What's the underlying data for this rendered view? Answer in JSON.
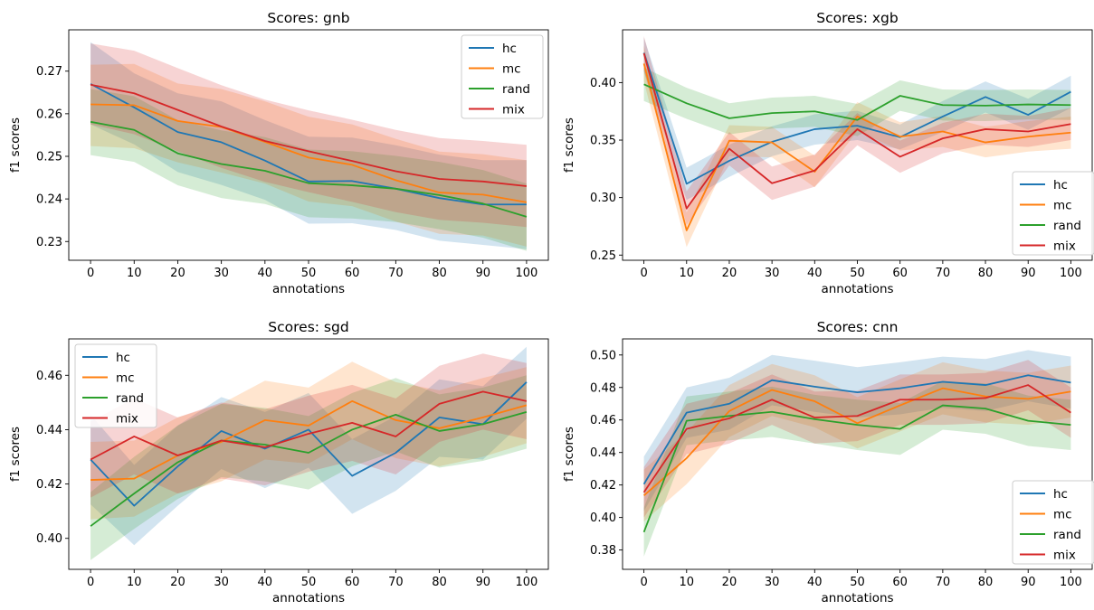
{
  "figure": {
    "colors": {
      "hc": "#1f77b4",
      "mc": "#ff7f0e",
      "rand": "#2ca02c",
      "mix": "#d62728"
    }
  },
  "chart_data": [
    {
      "type": "line",
      "title": "Scores: gnb",
      "xlabel": "annotations",
      "ylabel": "f1 scores",
      "x": [
        0,
        10,
        20,
        30,
        40,
        50,
        60,
        70,
        80,
        90,
        100
      ],
      "xlim": [
        -5,
        105
      ],
      "ylim": [
        0.2256,
        0.2797
      ],
      "xticks": [
        0,
        10,
        20,
        30,
        40,
        50,
        60,
        70,
        80,
        90,
        100
      ],
      "yticks": [
        0.23,
        0.24,
        0.25,
        0.26,
        0.27
      ],
      "legend": "top-right",
      "grid": false,
      "series": [
        {
          "name": "hc",
          "values": [
            0.267,
            0.2615,
            0.2557,
            0.2533,
            0.249,
            0.2441,
            0.2442,
            0.2424,
            0.2402,
            0.2387,
            0.2387
          ],
          "lower": [
            0.2575,
            0.2528,
            0.2463,
            0.2433,
            0.2398,
            0.2342,
            0.2343,
            0.2327,
            0.2302,
            0.2292,
            0.2282
          ],
          "upper": [
            0.2768,
            0.2695,
            0.2648,
            0.2629,
            0.2585,
            0.2546,
            0.2544,
            0.2526,
            0.2504,
            0.2491,
            0.2491
          ]
        },
        {
          "name": "mc",
          "values": [
            0.2622,
            0.262,
            0.2583,
            0.2569,
            0.2534,
            0.2497,
            0.248,
            0.2444,
            0.2415,
            0.241,
            0.2392
          ],
          "lower": [
            0.2524,
            0.2519,
            0.2486,
            0.2462,
            0.2436,
            0.2394,
            0.2383,
            0.2347,
            0.2318,
            0.2314,
            0.2288
          ],
          "upper": [
            0.2715,
            0.2717,
            0.2671,
            0.2658,
            0.2629,
            0.2593,
            0.2575,
            0.2541,
            0.2511,
            0.2505,
            0.2491
          ]
        },
        {
          "name": "rand",
          "values": [
            0.2581,
            0.2562,
            0.2507,
            0.2482,
            0.2466,
            0.2437,
            0.2432,
            0.2424,
            0.2409,
            0.2389,
            0.2358
          ],
          "lower": [
            0.2503,
            0.2487,
            0.2432,
            0.2402,
            0.2388,
            0.2357,
            0.2354,
            0.2346,
            0.2329,
            0.2309,
            0.2278
          ],
          "upper": [
            0.2658,
            0.2641,
            0.2585,
            0.2561,
            0.2545,
            0.2516,
            0.2512,
            0.2501,
            0.2487,
            0.2468,
            0.2436
          ]
        },
        {
          "name": "mix",
          "values": [
            0.2668,
            0.2648,
            0.2609,
            0.257,
            0.2536,
            0.2512,
            0.2489,
            0.2465,
            0.2447,
            0.2441,
            0.243
          ],
          "lower": [
            0.2575,
            0.2552,
            0.2512,
            0.2473,
            0.244,
            0.2416,
            0.2393,
            0.2369,
            0.2351,
            0.2344,
            0.2334
          ],
          "upper": [
            0.2765,
            0.2748,
            0.2707,
            0.2667,
            0.2633,
            0.2608,
            0.2586,
            0.2562,
            0.2543,
            0.2536,
            0.2527
          ]
        }
      ]
    },
    {
      "type": "line",
      "title": "Scores: xgb",
      "xlabel": "annotations",
      "ylabel": "f1 scores",
      "x": [
        0,
        10,
        20,
        30,
        40,
        50,
        60,
        70,
        80,
        90,
        100
      ],
      "xlim": [
        -5,
        105
      ],
      "ylim": [
        0.2455,
        0.4459
      ],
      "xticks": [
        0,
        10,
        20,
        30,
        40,
        50,
        60,
        70,
        80,
        90,
        100
      ],
      "yticks": [
        0.25,
        0.3,
        0.35,
        0.4
      ],
      "legend": "bottom-right",
      "grid": false,
      "series": [
        {
          "name": "hc",
          "values": [
            0.4259,
            0.312,
            0.332,
            0.3485,
            0.3595,
            0.3625,
            0.3525,
            0.3705,
            0.3875,
            0.372,
            0.392
          ],
          "lower": [
            0.41,
            0.298,
            0.318,
            0.336,
            0.346,
            0.35,
            0.342,
            0.357,
            0.374,
            0.359,
            0.378
          ],
          "upper": [
            0.4391,
            0.326,
            0.346,
            0.362,
            0.3725,
            0.3755,
            0.3635,
            0.384,
            0.401,
            0.386,
            0.406
          ]
        },
        {
          "name": "mc",
          "values": [
            0.4165,
            0.2715,
            0.3495,
            0.348,
            0.3225,
            0.3705,
            0.353,
            0.3575,
            0.348,
            0.353,
            0.3565
          ],
          "lower": [
            0.401,
            0.257,
            0.336,
            0.335,
            0.309,
            0.358,
            0.341,
            0.344,
            0.335,
            0.34,
            0.3425
          ],
          "upper": [
            0.432,
            0.287,
            0.363,
            0.3615,
            0.3365,
            0.383,
            0.3655,
            0.371,
            0.3615,
            0.3665,
            0.3705
          ]
        },
        {
          "name": "rand",
          "values": [
            0.3985,
            0.382,
            0.369,
            0.3735,
            0.375,
            0.3675,
            0.3885,
            0.3805,
            0.38,
            0.381,
            0.3805
          ],
          "lower": [
            0.384,
            0.3685,
            0.355,
            0.36,
            0.3615,
            0.3535,
            0.3755,
            0.367,
            0.3665,
            0.368,
            0.3675
          ],
          "upper": [
            0.413,
            0.3955,
            0.382,
            0.387,
            0.3885,
            0.3815,
            0.402,
            0.394,
            0.3935,
            0.394,
            0.3935
          ]
        },
        {
          "name": "mix",
          "values": [
            0.4255,
            0.2905,
            0.3425,
            0.3125,
            0.3235,
            0.3595,
            0.3355,
            0.3515,
            0.3595,
            0.3575,
            0.364
          ],
          "lower": [
            0.41,
            0.276,
            0.328,
            0.298,
            0.3095,
            0.3455,
            0.3215,
            0.3385,
            0.346,
            0.344,
            0.35
          ],
          "upper": [
            0.4405,
            0.3055,
            0.357,
            0.327,
            0.3375,
            0.3735,
            0.3495,
            0.365,
            0.373,
            0.371,
            0.378
          ]
        }
      ]
    },
    {
      "type": "line",
      "title": "Scores: sgd",
      "xlabel": "annotations",
      "ylabel": "f1 scores",
      "x": [
        0,
        10,
        20,
        30,
        40,
        50,
        60,
        70,
        80,
        90,
        100
      ],
      "xlim": [
        -5,
        105
      ],
      "ylim": [
        0.3886,
        0.4734
      ],
      "xticks": [
        0,
        10,
        20,
        30,
        40,
        50,
        60,
        70,
        80,
        90,
        100
      ],
      "yticks": [
        0.4,
        0.42,
        0.44,
        0.46
      ],
      "legend": "top-left",
      "grid": false,
      "series": [
        {
          "name": "hc",
          "values": [
            0.429,
            0.412,
            0.4265,
            0.4395,
            0.433,
            0.44,
            0.423,
            0.4315,
            0.4445,
            0.442,
            0.4575
          ],
          "lower": [
            0.4125,
            0.3975,
            0.412,
            0.4255,
            0.4185,
            0.426,
            0.409,
            0.4175,
            0.43,
            0.429,
            0.444
          ],
          "upper": [
            0.4455,
            0.427,
            0.4415,
            0.452,
            0.4465,
            0.4535,
            0.4365,
            0.445,
            0.4585,
            0.456,
            0.4705
          ]
        },
        {
          "name": "mc",
          "values": [
            0.4215,
            0.422,
            0.4305,
            0.4355,
            0.4435,
            0.4415,
            0.4505,
            0.4435,
            0.4405,
            0.4445,
            0.449
          ],
          "lower": [
            0.407,
            0.408,
            0.4165,
            0.421,
            0.429,
            0.4275,
            0.4365,
            0.4295,
            0.4265,
            0.43,
            0.435
          ],
          "upper": [
            0.4355,
            0.436,
            0.4445,
            0.4495,
            0.458,
            0.4555,
            0.465,
            0.4575,
            0.4545,
            0.459,
            0.463
          ]
        },
        {
          "name": "rand",
          "values": [
            0.4045,
            0.4165,
            0.428,
            0.436,
            0.4345,
            0.4315,
            0.44,
            0.4455,
            0.4395,
            0.442,
            0.4465
          ],
          "lower": [
            0.392,
            0.4035,
            0.4145,
            0.4225,
            0.421,
            0.418,
            0.4265,
            0.432,
            0.426,
            0.4285,
            0.433
          ],
          "upper": [
            0.417,
            0.43,
            0.4415,
            0.4495,
            0.448,
            0.445,
            0.4535,
            0.459,
            0.453,
            0.4555,
            0.46
          ]
        },
        {
          "name": "mix",
          "values": [
            0.429,
            0.4375,
            0.4305,
            0.436,
            0.4335,
            0.4385,
            0.4425,
            0.4375,
            0.4495,
            0.454,
            0.4505
          ],
          "lower": [
            0.415,
            0.4235,
            0.4165,
            0.422,
            0.4195,
            0.4245,
            0.4285,
            0.4235,
            0.4355,
            0.44,
            0.4365
          ],
          "upper": [
            0.443,
            0.4515,
            0.4445,
            0.45,
            0.4475,
            0.4525,
            0.4565,
            0.4515,
            0.4635,
            0.468,
            0.4645
          ]
        }
      ]
    },
    {
      "type": "line",
      "title": "Scores: cnn",
      "xlabel": "annotations",
      "ylabel": "f1 scores",
      "x": [
        0,
        10,
        20,
        30,
        40,
        50,
        60,
        70,
        80,
        90,
        100
      ],
      "xlim": [
        -5,
        105
      ],
      "ylim": [
        0.3681,
        0.5099
      ],
      "xticks": [
        0,
        10,
        20,
        30,
        40,
        50,
        60,
        70,
        80,
        90,
        100
      ],
      "yticks": [
        0.38,
        0.4,
        0.42,
        0.44,
        0.46,
        0.48,
        0.5
      ],
      "legend": "bottom-right",
      "grid": false,
      "series": [
        {
          "name": "hc",
          "values": [
            0.4205,
            0.4645,
            0.47,
            0.4845,
            0.4805,
            0.477,
            0.4795,
            0.4835,
            0.4815,
            0.4875,
            0.483
          ],
          "lower": [
            0.404,
            0.449,
            0.454,
            0.469,
            0.465,
            0.4615,
            0.4635,
            0.4675,
            0.4655,
            0.4715,
            0.467
          ],
          "upper": [
            0.4375,
            0.48,
            0.486,
            0.5,
            0.4965,
            0.4925,
            0.4955,
            0.499,
            0.4975,
            0.503,
            0.499
          ]
        },
        {
          "name": "mc",
          "values": [
            0.4135,
            0.4365,
            0.4655,
            0.4785,
            0.4715,
            0.458,
            0.469,
            0.4795,
            0.4745,
            0.473,
            0.4775
          ],
          "lower": [
            0.3975,
            0.4205,
            0.4495,
            0.4625,
            0.4555,
            0.4425,
            0.453,
            0.4635,
            0.4585,
            0.457,
            0.4615
          ],
          "upper": [
            0.4295,
            0.4525,
            0.4815,
            0.4945,
            0.4875,
            0.474,
            0.485,
            0.4955,
            0.4905,
            0.489,
            0.4935
          ]
        },
        {
          "name": "rand",
          "values": [
            0.391,
            0.4595,
            0.4625,
            0.465,
            0.4605,
            0.457,
            0.4545,
            0.469,
            0.467,
            0.4595,
            0.457
          ],
          "lower": [
            0.376,
            0.4445,
            0.4475,
            0.4495,
            0.4455,
            0.4415,
            0.4385,
            0.454,
            0.4515,
            0.444,
            0.4415
          ],
          "upper": [
            0.406,
            0.4745,
            0.4775,
            0.4805,
            0.4755,
            0.4725,
            0.4705,
            0.484,
            0.4825,
            0.475,
            0.4725
          ]
        },
        {
          "name": "mix",
          "values": [
            0.4155,
            0.4545,
            0.461,
            0.4725,
            0.4615,
            0.4625,
            0.4725,
            0.4725,
            0.4735,
            0.4815,
            0.4645
          ],
          "lower": [
            0.4,
            0.439,
            0.4455,
            0.457,
            0.4455,
            0.447,
            0.457,
            0.457,
            0.458,
            0.466,
            0.449
          ],
          "upper": [
            0.431,
            0.47,
            0.4765,
            0.488,
            0.4775,
            0.478,
            0.488,
            0.488,
            0.489,
            0.497,
            0.48
          ]
        }
      ]
    }
  ]
}
